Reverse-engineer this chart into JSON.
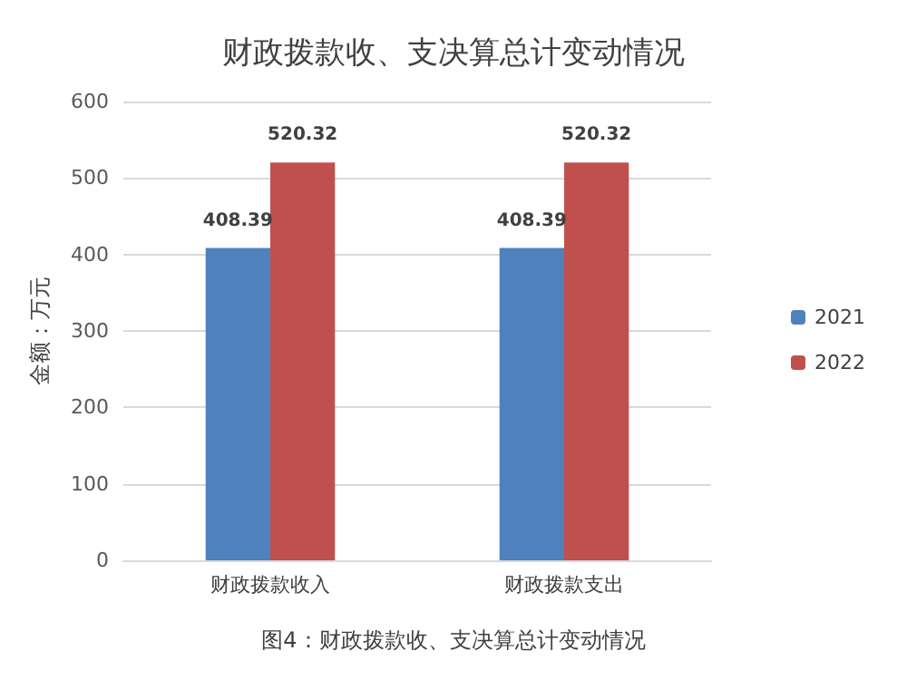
{
  "chart_data": {
    "type": "bar",
    "title": "财政拨款收、支决算总计变动情况",
    "ylabel": "金额：万元",
    "annotations": [
      "图4：财政拨款收、支决算总计变动情况"
    ],
    "categories": [
      "财政拨款收入",
      "财政拨款支出"
    ],
    "series": [
      {
        "name": "2021",
        "color": "#4f81bd",
        "values": [
          408.39,
          408.39
        ]
      },
      {
        "name": "2022",
        "color": "#c0504d",
        "values": [
          520.32,
          520.32
        ]
      }
    ],
    "ylim": [
      0,
      600
    ],
    "yticks": [
      0,
      100,
      200,
      300,
      400,
      500,
      600
    ],
    "grid": "y",
    "legend": "right",
    "data_labels": true
  }
}
